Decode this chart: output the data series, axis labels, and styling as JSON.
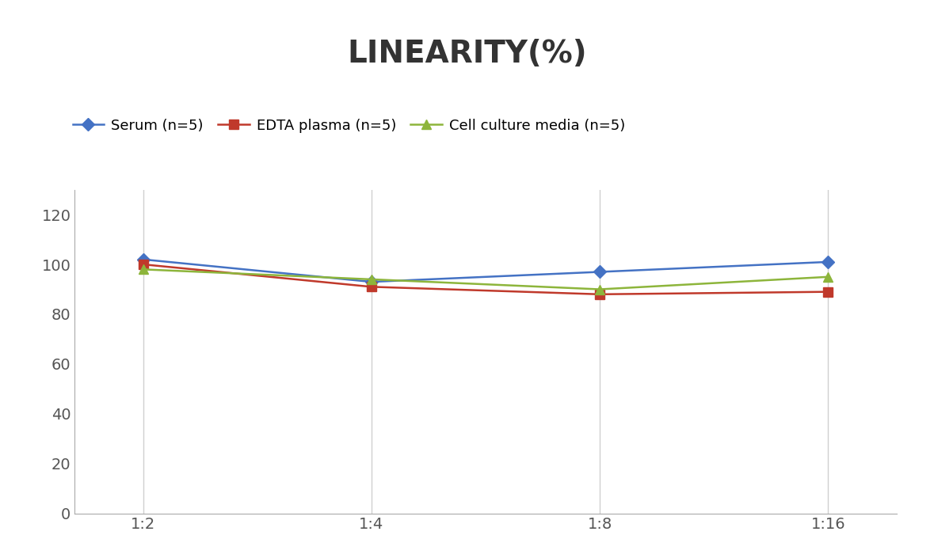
{
  "title": "LINEARITY(%)",
  "x_labels": [
    "1:2",
    "1:4",
    "1:8",
    "1:16"
  ],
  "series": [
    {
      "label": "Serum (n=5)",
      "values": [
        102,
        93,
        97,
        101
      ],
      "color": "#4472C4",
      "marker": "D",
      "markersize": 8
    },
    {
      "label": "EDTA plasma (n=5)",
      "values": [
        100,
        91,
        88,
        89
      ],
      "color": "#C0392B",
      "marker": "s",
      "markersize": 8
    },
    {
      "label": "Cell culture media (n=5)",
      "values": [
        98,
        94,
        90,
        95
      ],
      "color": "#8db53b",
      "marker": "^",
      "markersize": 8
    }
  ],
  "ylim": [
    0,
    130
  ],
  "yticks": [
    0,
    20,
    40,
    60,
    80,
    100,
    120
  ],
  "background_color": "#ffffff",
  "grid_color": "#d0d0d0",
  "title_fontsize": 28,
  "axis_fontsize": 14,
  "legend_fontsize": 13
}
